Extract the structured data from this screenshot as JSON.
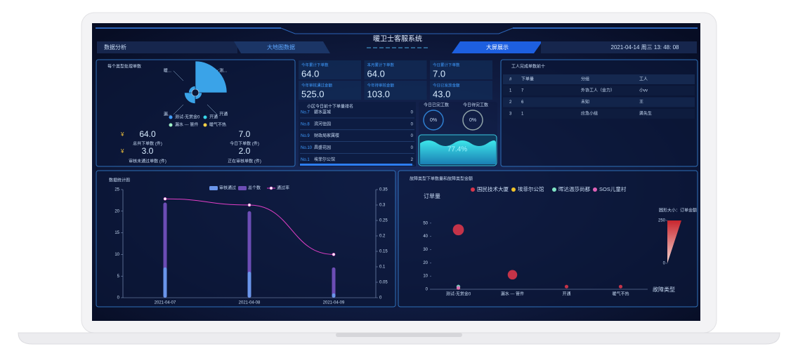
{
  "header": {
    "nav_left": "数据分析",
    "nav_map": "大地图数据",
    "title": "暖卫士客服系统",
    "nav_screen": "大屏展示",
    "datetime": "2021-04-14 周三 13: 48: 08"
  },
  "summary": [
    {
      "currency": "¥",
      "value": "64.0",
      "label": "总共下单数 (件)"
    },
    {
      "value": "7.0",
      "label": "今日下单数 (件)"
    },
    {
      "currency": "¥",
      "value": "3.0",
      "label": "审核未通过单数 (件)"
    },
    {
      "value": "2.0",
      "label": "正在审核单数 (件)"
    }
  ],
  "kpis": [
    {
      "label": "今年累计下单数",
      "value": "64.0"
    },
    {
      "label": "本月累计下单数",
      "value": "64.0"
    },
    {
      "label": "今日累计下单数",
      "value": "7.0"
    },
    {
      "label": "今年审核通过金额",
      "value": "525.0"
    },
    {
      "label": "今年待审核金额",
      "value": "103.0"
    },
    {
      "label": "今日已发放金额",
      "value": "43.0"
    }
  ],
  "ranking": {
    "title": "小区今日前十下单量排名",
    "rows": [
      [
        "No.7",
        "碧水蓝城",
        "0"
      ],
      [
        "No.8",
        "滨河佳园",
        "0"
      ],
      [
        "No.9",
        "财政局家属楼",
        "0"
      ],
      [
        "No.10",
        "昌盛花园",
        "0"
      ],
      [
        "No.1",
        "埃菲尔公馆",
        "2"
      ]
    ]
  },
  "gauges": [
    {
      "label": "今日已完工数",
      "value": "0%"
    },
    {
      "label": "今日待完工数",
      "value": "0%"
    }
  ],
  "water_level": "77.4%",
  "workers": {
    "title": "工人完成单数前十",
    "columns": [
      "#",
      "下单量",
      "分组",
      "工人"
    ],
    "rows": [
      [
        "1",
        "7",
        "外协工人（金力）",
        "小vv"
      ],
      [
        "2",
        "6",
        "未知",
        "王"
      ],
      [
        "3",
        "1",
        "应急小组",
        "龚先生"
      ]
    ]
  },
  "chart_data": [
    {
      "type": "pie",
      "rose": true,
      "title": "每个类型处理单数",
      "categories": [
        "测试-无赏金0",
        "开通",
        "漏水 --- 管件",
        "暖气不热"
      ],
      "labels": [
        "测...",
        "开通",
        "漏...",
        "暖..."
      ],
      "values": [
        45,
        4,
        11,
        4
      ],
      "color": "#3aa3e8",
      "legend_colors": [
        "#3f9cff",
        "#38d6e8",
        "#9ef0c6",
        "#f2d046"
      ]
    },
    {
      "type": "bar",
      "title": "数据统计图",
      "categories": [
        "2021-04-07",
        "2021-04-08",
        "2021-04-09"
      ],
      "ylim": [
        0,
        25
      ],
      "yticks": [
        0,
        5,
        10,
        15,
        20,
        25
      ],
      "y2lim": [
        0,
        0.35
      ],
      "y2ticks": [
        0,
        0.05,
        0.1,
        0.15,
        0.2,
        0.25,
        0.3,
        0.35
      ],
      "grid": false,
      "series": [
        {
          "name": "审核通过",
          "color": "#6a95ea",
          "values": [
            7,
            6,
            1
          ]
        },
        {
          "name": "总个数",
          "color": "#6c4db5",
          "values": [
            22,
            20,
            7
          ]
        },
        {
          "name": "通过率",
          "color": "#e23fc8",
          "type": "line",
          "axis": "y2",
          "values": [
            0.32,
            0.3,
            0.14
          ]
        }
      ]
    },
    {
      "type": "scatter",
      "title": "故障类型下单数量和故障类型金额",
      "categories": [
        "测试-无赏金0",
        "漏水 --- 管件",
        "开通",
        "暖气不热"
      ],
      "xlabel": "故障类型",
      "ylabel": "订单量",
      "ylim": [
        0,
        60
      ],
      "yticks": [
        0,
        10,
        20,
        30,
        40,
        50
      ],
      "grid": false,
      "series": [
        {
          "name": "国民技术大厦",
          "color": "#d8364a",
          "values": [
            45,
            11,
            2,
            2
          ],
          "sizes": [
            210,
            170,
            20,
            20
          ]
        },
        {
          "name": "埃菲尔公馆",
          "color": "#f0c22a",
          "values": [
            1,
            null,
            null,
            null
          ],
          "sizes": [
            20,
            null,
            null,
            null
          ]
        },
        {
          "name": "晖达温莎尚都",
          "color": "#7fe3c4",
          "values": [
            2,
            null,
            null,
            null
          ],
          "sizes": [
            25,
            null,
            null,
            null
          ]
        },
        {
          "name": "SOS儿童村",
          "color": "#e062b6",
          "values": [
            1,
            null,
            null,
            null
          ],
          "sizes": [
            20,
            null,
            null,
            null
          ]
        }
      ],
      "size_legend": {
        "title": "圆形大小：订单金额",
        "range": [
          0,
          250
        ],
        "ticks": [
          0,
          250
        ]
      }
    }
  ]
}
